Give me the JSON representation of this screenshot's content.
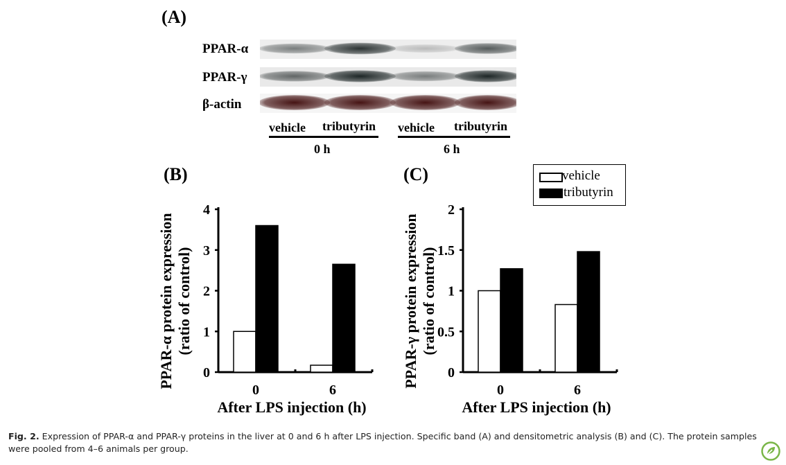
{
  "panels": {
    "a": "(A)",
    "b": "(B)",
    "c": "(C)"
  },
  "blot": {
    "rows": [
      "PPAR-α",
      "PPAR-γ",
      "β-actin"
    ],
    "lanes": [
      "vehicle",
      "tributyrin",
      "vehicle",
      "tributyrin"
    ],
    "groups": [
      "0 h",
      "6 h"
    ],
    "band_intensity": {
      "PPAR-α": [
        0.55,
        0.85,
        0.25,
        0.7
      ],
      "PPAR-γ": [
        0.65,
        0.9,
        0.55,
        0.9
      ],
      "β-actin": [
        0.95,
        0.95,
        0.95,
        0.95
      ]
    }
  },
  "legend": {
    "vehicle": "vehicle",
    "tributyrin": "tributyrin",
    "colors": {
      "vehicle": "#ffffff",
      "tributyrin": "#000000"
    }
  },
  "chart_data": [
    {
      "type": "bar",
      "panel": "(B)",
      "categories": [
        "0",
        "6"
      ],
      "series": [
        {
          "name": "vehicle",
          "values": [
            1.0,
            0.17
          ]
        },
        {
          "name": "tributyrin",
          "values": [
            3.6,
            2.65
          ]
        }
      ],
      "ylabel_line1": "PPAR-α protein expression",
      "ylabel_line2": "(ratio of control)",
      "xlabel": "After LPS injection (h)",
      "ylim": [
        0,
        4
      ],
      "yticks": [
        "0",
        "1",
        "2",
        "3",
        "4"
      ],
      "ytick_values": [
        0,
        1,
        2,
        3,
        4
      ]
    },
    {
      "type": "bar",
      "panel": "(C)",
      "categories": [
        "0",
        "6"
      ],
      "series": [
        {
          "name": "vehicle",
          "values": [
            1.0,
            0.83
          ]
        },
        {
          "name": "tributyrin",
          "values": [
            1.27,
            1.48
          ]
        }
      ],
      "ylabel_line1": "PPAR-γ protein expression",
      "ylabel_line2": "(ratio of control)",
      "xlabel": "After LPS injection (h)",
      "ylim": [
        0,
        2
      ],
      "yticks": [
        "0",
        "0.5",
        "1",
        "1.5",
        "2"
      ],
      "ytick_values": [
        0,
        0.5,
        1,
        1.5,
        2
      ]
    }
  ],
  "caption": {
    "label": "Fig. 2.",
    "text": "Expression of PPAR-α and PPAR-γ proteins in the liver at 0 and 6 h after LPS injection. Specific band (A) and densitometric analysis (B) and (C). The protein samples were pooled from 4–6 animals per group."
  }
}
